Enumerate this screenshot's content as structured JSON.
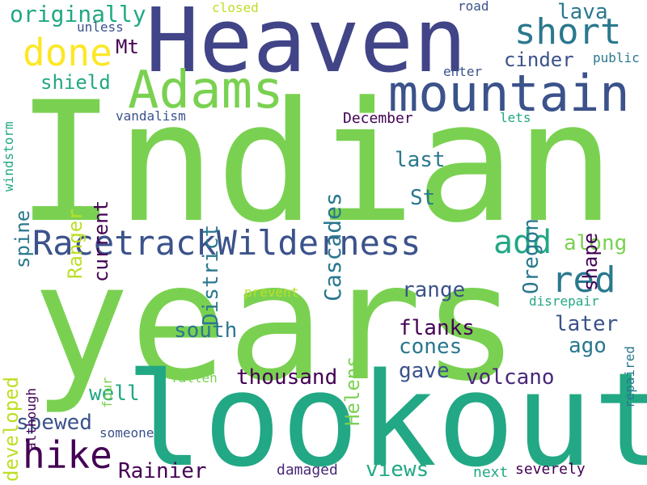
{
  "words": [
    {
      "text": "Indian",
      "color": "#7ad151"
    },
    {
      "text": "years",
      "color": "#7ad151"
    },
    {
      "text": "lookout",
      "color": "#22a884"
    },
    {
      "text": "Heaven",
      "color": "#414487"
    },
    {
      "text": "mountain",
      "color": "#3b528b"
    },
    {
      "text": "Adams",
      "color": "#7ad151"
    },
    {
      "text": "RacetrackWilderness",
      "color": "#3b528b"
    },
    {
      "text": "short",
      "color": "#2a788e"
    },
    {
      "text": "hike",
      "color": "#440154"
    },
    {
      "text": "done",
      "color": "#fde725"
    },
    {
      "text": "red",
      "color": "#2a788e"
    },
    {
      "text": "add",
      "color": "#22a884"
    },
    {
      "text": "originally",
      "color": "#22a884"
    },
    {
      "text": "Cascades",
      "color": "#2a788e"
    },
    {
      "text": "District",
      "color": "#2a788e"
    },
    {
      "text": "Oregon",
      "color": "#2a788e"
    },
    {
      "text": "thousand",
      "color": "#440154"
    },
    {
      "text": "volcano",
      "color": "#482878"
    },
    {
      "text": "views",
      "color": "#22a884"
    },
    {
      "text": "Rainier",
      "color": "#440154"
    },
    {
      "text": "spewed",
      "color": "#3b528b"
    },
    {
      "text": "well",
      "color": "#22a884"
    },
    {
      "text": "south",
      "color": "#2a788e"
    },
    {
      "text": "flanks",
      "color": "#440154"
    },
    {
      "text": "cones",
      "color": "#2a788e"
    },
    {
      "text": "gave",
      "color": "#3b528b"
    },
    {
      "text": "later",
      "color": "#3b528b"
    },
    {
      "text": "ago",
      "color": "#2a788e"
    },
    {
      "text": "range",
      "color": "#3b528b"
    },
    {
      "text": "along",
      "color": "#7ad151"
    },
    {
      "text": "last",
      "color": "#2a788e"
    },
    {
      "text": "St",
      "color": "#2a788e"
    },
    {
      "text": "lava",
      "color": "#2a788e"
    },
    {
      "text": "cinder",
      "color": "#3b528b"
    },
    {
      "text": "shield",
      "color": "#22a884"
    },
    {
      "text": "Mt",
      "color": "#440154"
    },
    {
      "text": "current",
      "color": "#440154"
    },
    {
      "text": "Ranger",
      "color": "#bddf26"
    },
    {
      "text": "spine",
      "color": "#2a788e"
    },
    {
      "text": "developed",
      "color": "#bddf26"
    },
    {
      "text": "Helens",
      "color": "#7ad151"
    },
    {
      "text": "shape",
      "color": "#440154"
    },
    {
      "text": "December",
      "color": "#440154"
    },
    {
      "text": "public",
      "color": "#2a788e"
    },
    {
      "text": "enter",
      "color": "#3b528b"
    },
    {
      "text": "lets",
      "color": "#22a884"
    },
    {
      "text": "vandalism",
      "color": "#3b528b"
    },
    {
      "text": "windstorm",
      "color": "#22a884"
    },
    {
      "text": "unless",
      "color": "#3b528b"
    },
    {
      "text": "closed",
      "color": "#bddf26"
    },
    {
      "text": "road",
      "color": "#3b528b"
    },
    {
      "text": "prevent",
      "color": "#bddf26"
    },
    {
      "text": "although",
      "color": "#440154"
    },
    {
      "text": "four",
      "color": "#7ad151"
    },
    {
      "text": "fallen",
      "color": "#7ad151"
    },
    {
      "text": "someone",
      "color": "#3b528b"
    },
    {
      "text": "damaged",
      "color": "#482878"
    },
    {
      "text": "next",
      "color": "#22a884"
    },
    {
      "text": "severely",
      "color": "#440154"
    },
    {
      "text": "disrepair",
      "color": "#22a884"
    },
    {
      "text": "repaired",
      "color": "#2a788e"
    }
  ]
}
